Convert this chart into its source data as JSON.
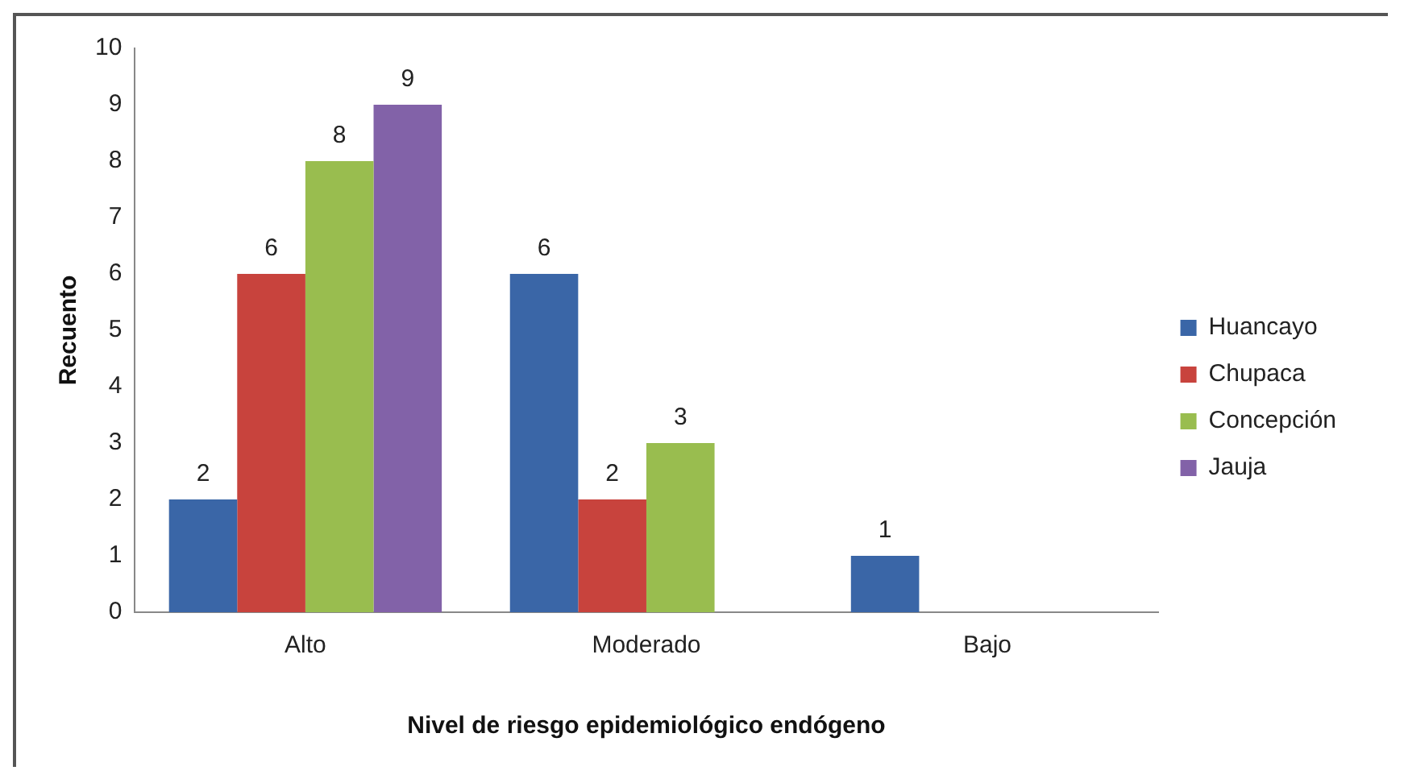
{
  "chart_data": {
    "type": "bar",
    "xlabel": "Nivel de riesgo epidemiológico endógeno",
    "ylabel": "Recuento",
    "categories": [
      "Alto",
      "Moderado",
      "Bajo"
    ],
    "series": [
      {
        "name": "Huancayo",
        "color": "#3a66a7",
        "values": [
          2,
          6,
          1
        ]
      },
      {
        "name": "Chupaca",
        "color": "#c8433d",
        "values": [
          6,
          2,
          null
        ]
      },
      {
        "name": "Concepción",
        "color": "#99bd4f",
        "values": [
          8,
          3,
          null
        ]
      },
      {
        "name": "Jauja",
        "color": "#8262a8",
        "values": [
          9,
          null,
          null
        ]
      }
    ],
    "ylim": [
      0,
      10
    ],
    "yticks": [
      0,
      1,
      2,
      3,
      4,
      5,
      6,
      7,
      8,
      9,
      10
    ],
    "grid": false,
    "legend": "right",
    "data_labels": true
  }
}
